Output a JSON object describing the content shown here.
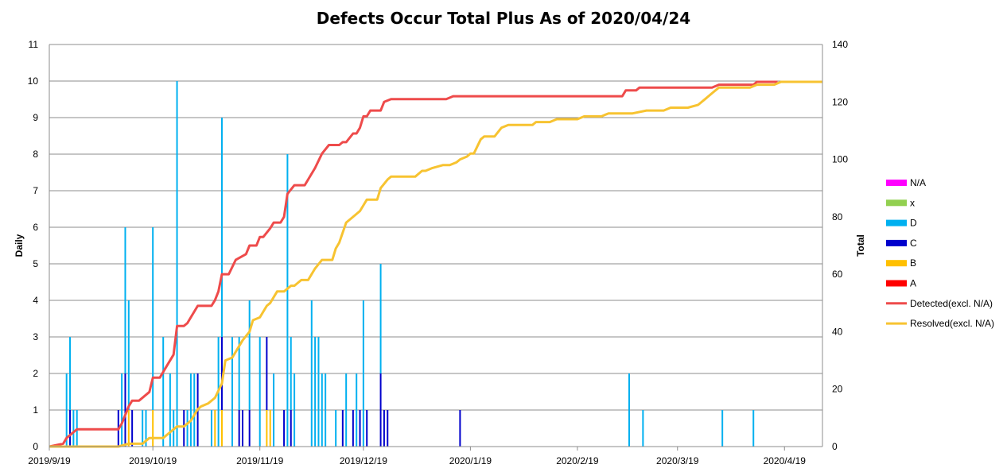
{
  "chart_data": {
    "type": "bar+line",
    "title": "Defects Occur Total Plus As of 2020/04/24",
    "y_left_label": "Daily",
    "y_right_label": "Total",
    "y_left_range": [
      0,
      11
    ],
    "y_right_range": [
      0,
      140
    ],
    "y_left_ticks": [
      "0",
      "1",
      "2",
      "3",
      "4",
      "5",
      "6",
      "7",
      "8",
      "9",
      "10",
      "11"
    ],
    "y_right_ticks": [
      "0",
      "20",
      "40",
      "60",
      "80",
      "100",
      "120",
      "140"
    ],
    "x_range": [
      "2019/9/19",
      "2020/4/30"
    ],
    "x_ticks": [
      "2019/9/19",
      "2019/10/19",
      "2019/11/19",
      "2019/12/19",
      "2020/1/19",
      "2020/2/19",
      "2020/3/19",
      "2020/4/19"
    ],
    "grid": true,
    "legend_position": "right",
    "bar_series": [
      {
        "name": "N/A",
        "color": "#FF00FF",
        "points": []
      },
      {
        "name": "x",
        "color": "#92D050",
        "points": []
      },
      {
        "name": "D",
        "color": "#00B0F0",
        "points": [
          [
            "2019/9/24",
            2
          ],
          [
            "2019/9/25",
            2
          ],
          [
            "2019/9/26",
            1
          ],
          [
            "2019/9/27",
            1
          ],
          [
            "2019/10/10",
            2
          ],
          [
            "2019/10/11",
            4
          ],
          [
            "2019/10/12",
            3
          ],
          [
            "2019/10/16",
            1
          ],
          [
            "2019/10/17",
            1
          ],
          [
            "2019/10/19",
            5
          ],
          [
            "2019/10/22",
            3
          ],
          [
            "2019/10/24",
            2
          ],
          [
            "2019/10/25",
            1
          ],
          [
            "2019/10/26",
            10
          ],
          [
            "2019/10/29",
            1
          ],
          [
            "2019/10/30",
            2
          ],
          [
            "2019/10/31",
            2
          ],
          [
            "2019/11/5",
            1
          ],
          [
            "2019/11/7",
            3
          ],
          [
            "2019/11/8",
            6
          ],
          [
            "2019/11/11",
            3
          ],
          [
            "2019/11/13",
            2
          ],
          [
            "2019/11/16",
            3
          ],
          [
            "2019/11/19",
            3
          ],
          [
            "2019/11/23",
            2
          ],
          [
            "2019/11/27",
            8
          ],
          [
            "2019/11/28",
            2
          ],
          [
            "2019/11/29",
            2
          ],
          [
            "2019/12/4",
            4
          ],
          [
            "2019/12/5",
            3
          ],
          [
            "2019/12/6",
            3
          ],
          [
            "2019/12/7",
            2
          ],
          [
            "2019/12/8",
            2
          ],
          [
            "2019/12/11",
            1
          ],
          [
            "2019/12/14",
            2
          ],
          [
            "2019/12/17",
            2
          ],
          [
            "2019/12/19",
            4
          ],
          [
            "2019/12/24",
            3
          ],
          [
            "2020/3/5",
            2
          ],
          [
            "2020/3/9",
            1
          ],
          [
            "2020/4/1",
            1
          ],
          [
            "2020/4/10",
            1
          ]
        ]
      },
      {
        "name": "C",
        "color": "#0000CC",
        "points": [
          [
            "2019/9/25",
            1
          ],
          [
            "2019/10/9",
            1
          ],
          [
            "2019/10/11",
            2
          ],
          [
            "2019/10/13",
            1
          ],
          [
            "2019/10/28",
            1
          ],
          [
            "2019/11/1",
            2
          ],
          [
            "2019/11/8",
            2
          ],
          [
            "2019/11/13",
            1
          ],
          [
            "2019/11/14",
            1
          ],
          [
            "2019/11/16",
            1
          ],
          [
            "2019/11/21",
            2
          ],
          [
            "2019/11/26",
            1
          ],
          [
            "2019/11/28",
            1
          ],
          [
            "2019/12/13",
            1
          ],
          [
            "2019/12/16",
            1
          ],
          [
            "2019/12/18",
            1
          ],
          [
            "2019/12/20",
            1
          ],
          [
            "2019/12/24",
            2
          ],
          [
            "2019/12/25",
            1
          ],
          [
            "2019/12/26",
            1
          ],
          [
            "2020/1/16",
            1
          ]
        ]
      },
      {
        "name": "B",
        "color": "#FFC000",
        "points": [
          [
            "2019/10/12",
            1
          ],
          [
            "2019/10/19",
            1
          ],
          [
            "2019/11/6",
            1
          ],
          [
            "2019/11/8",
            1
          ],
          [
            "2019/11/21",
            1
          ],
          [
            "2019/11/22",
            1
          ]
        ]
      },
      {
        "name": "A",
        "color": "#FF0000",
        "points": []
      }
    ],
    "line_series": [
      {
        "name": "Detected(excl. N/A)",
        "color": "#EE4B4B",
        "points": [
          [
            "2019/9/19",
            0
          ],
          [
            "2019/9/23",
            1
          ],
          [
            "2019/9/24",
            3
          ],
          [
            "2019/9/26",
            5
          ],
          [
            "2019/9/27",
            6
          ],
          [
            "2019/10/9",
            6
          ],
          [
            "2019/10/10",
            8
          ],
          [
            "2019/10/12",
            14
          ],
          [
            "2019/10/13",
            16
          ],
          [
            "2019/10/15",
            16
          ],
          [
            "2019/10/18",
            19
          ],
          [
            "2019/10/19",
            24
          ],
          [
            "2019/10/21",
            24
          ],
          [
            "2019/10/23",
            28
          ],
          [
            "2019/10/25",
            32
          ],
          [
            "2019/10/26",
            42
          ],
          [
            "2019/10/28",
            42
          ],
          [
            "2019/10/29",
            43
          ],
          [
            "2019/10/30",
            45
          ],
          [
            "2019/11/1",
            49
          ],
          [
            "2019/11/5",
            49
          ],
          [
            "2019/11/6",
            51
          ],
          [
            "2019/11/7",
            54
          ],
          [
            "2019/11/8",
            60
          ],
          [
            "2019/11/10",
            60
          ],
          [
            "2019/11/12",
            65
          ],
          [
            "2019/11/15",
            67
          ],
          [
            "2019/11/16",
            70
          ],
          [
            "2019/11/18",
            70
          ],
          [
            "2019/11/19",
            73
          ],
          [
            "2019/11/20",
            73
          ],
          [
            "2019/11/22",
            76
          ],
          [
            "2019/11/23",
            78
          ],
          [
            "2019/11/25",
            78
          ],
          [
            "2019/11/26",
            80
          ],
          [
            "2019/11/27",
            88
          ],
          [
            "2019/11/29",
            91
          ],
          [
            "2019/12/2",
            91
          ],
          [
            "2019/12/5",
            97
          ],
          [
            "2019/12/7",
            102
          ],
          [
            "2019/12/9",
            105
          ],
          [
            "2019/12/12",
            105
          ],
          [
            "2019/12/13",
            106
          ],
          [
            "2019/12/14",
            106
          ],
          [
            "2019/12/16",
            109
          ],
          [
            "2019/12/17",
            109
          ],
          [
            "2019/12/18",
            111
          ],
          [
            "2019/12/19",
            115
          ],
          [
            "2019/12/20",
            115
          ],
          [
            "2019/12/21",
            117
          ],
          [
            "2019/12/24",
            117
          ],
          [
            "2019/12/25",
            120
          ],
          [
            "2019/12/27",
            121
          ],
          [
            "2020/1/12",
            121
          ],
          [
            "2020/1/14",
            122
          ],
          [
            "2020/3/3",
            122
          ],
          [
            "2020/3/4",
            124
          ],
          [
            "2020/3/7",
            124
          ],
          [
            "2020/3/8",
            125
          ],
          [
            "2020/3/29",
            125
          ],
          [
            "2020/3/31",
            126
          ],
          [
            "2020/4/10",
            126
          ],
          [
            "2020/4/11",
            127
          ],
          [
            "2020/4/17",
            127
          ]
        ]
      },
      {
        "name": "Resolved(excl. N/A)",
        "color": "#F7C331",
        "points": [
          [
            "2019/9/19",
            0
          ],
          [
            "2019/10/9",
            0
          ],
          [
            "2019/10/12",
            1
          ],
          [
            "2019/10/16",
            1
          ],
          [
            "2019/10/18",
            3
          ],
          [
            "2019/10/22",
            3
          ],
          [
            "2019/10/24",
            5
          ],
          [
            "2019/10/26",
            7
          ],
          [
            "2019/10/28",
            7
          ],
          [
            "2019/10/30",
            9
          ],
          [
            "2019/11/1",
            13
          ],
          [
            "2019/11/2",
            14
          ],
          [
            "2019/11/4",
            15
          ],
          [
            "2019/11/6",
            17
          ],
          [
            "2019/11/8",
            22
          ],
          [
            "2019/11/9",
            30
          ],
          [
            "2019/11/11",
            31
          ],
          [
            "2019/11/14",
            37
          ],
          [
            "2019/11/16",
            40
          ],
          [
            "2019/11/17",
            44
          ],
          [
            "2019/11/19",
            45
          ],
          [
            "2019/11/21",
            49
          ],
          [
            "2019/11/22",
            50
          ],
          [
            "2019/11/24",
            54
          ],
          [
            "2019/11/26",
            54
          ],
          [
            "2019/11/28",
            56
          ],
          [
            "2019/11/29",
            56
          ],
          [
            "2019/12/1",
            58
          ],
          [
            "2019/12/3",
            58
          ],
          [
            "2019/12/5",
            62
          ],
          [
            "2019/12/7",
            65
          ],
          [
            "2019/12/10",
            65
          ],
          [
            "2019/12/11",
            69
          ],
          [
            "2019/12/12",
            71
          ],
          [
            "2019/12/14",
            78
          ],
          [
            "2019/12/16",
            80
          ],
          [
            "2019/12/18",
            82
          ],
          [
            "2019/12/19",
            84
          ],
          [
            "2019/12/20",
            86
          ],
          [
            "2019/12/23",
            86
          ],
          [
            "2019/12/24",
            90
          ],
          [
            "2019/12/26",
            93
          ],
          [
            "2019/12/27",
            94
          ],
          [
            "2020/1/3",
            94
          ],
          [
            "2020/1/5",
            96
          ],
          [
            "2020/1/6",
            96
          ],
          [
            "2020/1/8",
            97
          ],
          [
            "2020/1/11",
            98
          ],
          [
            "2020/1/13",
            98
          ],
          [
            "2020/1/15",
            99
          ],
          [
            "2020/1/16",
            100
          ],
          [
            "2020/1/18",
            101
          ],
          [
            "2020/1/19",
            102
          ],
          [
            "2020/1/20",
            102
          ],
          [
            "2020/1/22",
            107
          ],
          [
            "2020/1/23",
            108
          ],
          [
            "2020/1/26",
            108
          ],
          [
            "2020/1/28",
            111
          ],
          [
            "2020/1/30",
            112
          ],
          [
            "2020/2/6",
            112
          ],
          [
            "2020/2/7",
            113
          ],
          [
            "2020/2/11",
            113
          ],
          [
            "2020/2/13",
            114
          ],
          [
            "2020/2/19",
            114
          ],
          [
            "2020/2/21",
            115
          ],
          [
            "2020/2/26",
            115
          ],
          [
            "2020/2/28",
            116
          ],
          [
            "2020/3/6",
            116
          ],
          [
            "2020/3/10",
            117
          ],
          [
            "2020/3/15",
            117
          ],
          [
            "2020/3/17",
            118
          ],
          [
            "2020/3/22",
            118
          ],
          [
            "2020/3/25",
            119
          ],
          [
            "2020/3/27",
            121
          ],
          [
            "2020/3/29",
            123
          ],
          [
            "2020/3/31",
            125
          ],
          [
            "2020/4/9",
            125
          ],
          [
            "2020/4/11",
            126
          ],
          [
            "2020/4/16",
            126
          ],
          [
            "2020/4/18",
            127
          ],
          [
            "2020/4/30",
            127
          ]
        ]
      }
    ]
  }
}
